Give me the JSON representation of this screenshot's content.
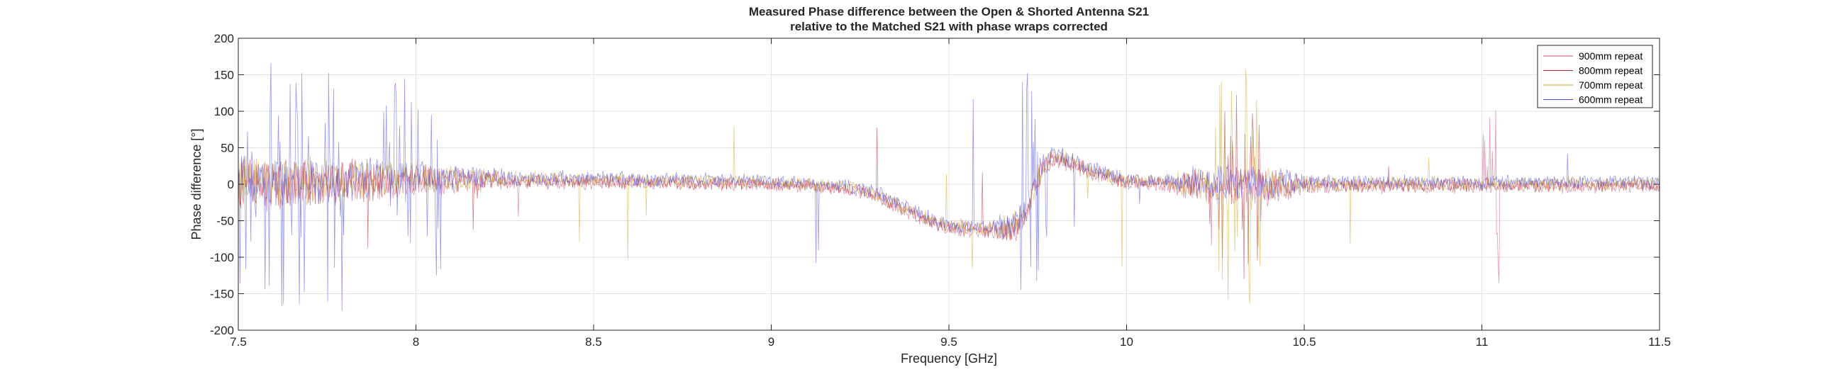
{
  "chart_data": {
    "type": "line",
    "title_lines": [
      "Measured Phase difference between the Open & Shorted Antenna S21",
      "relative to the Matched S21 with phase wraps corrected"
    ],
    "xlabel": "Frequency [GHz]",
    "ylabel": "Phase difference [°]",
    "xlim": [
      7.5,
      11.5
    ],
    "ylim": [
      -200,
      200
    ],
    "x_ticks": [
      7.5,
      8,
      8.5,
      9,
      9.5,
      10,
      10.5,
      11,
      11.5
    ],
    "x_tick_labels": [
      "7.5",
      "8",
      "8.5",
      "9",
      "9.5",
      "10",
      "10.5",
      "11",
      "11.5"
    ],
    "y_ticks": [
      200,
      150,
      100,
      50,
      0,
      -50,
      -100,
      -150,
      -200
    ],
    "y_tick_labels": [
      "200",
      "150",
      "100",
      "50",
      "0",
      "-50",
      "-100",
      "-150",
      "-200"
    ],
    "grid": true,
    "legend_position": "top-right",
    "series": [
      {
        "name": "900mm repeat",
        "color": "#c84a6a"
      },
      {
        "name": "800mm repeat",
        "color": "#b0202a"
      },
      {
        "name": "700mm repeat",
        "color": "#c8a830"
      },
      {
        "name": "600mm repeat",
        "color": "#4848e0"
      }
    ],
    "trend": {
      "x": [
        7.5,
        8.0,
        8.5,
        9.0,
        9.2,
        9.3,
        9.4,
        9.5,
        9.6,
        9.68,
        9.72,
        9.76,
        9.8,
        9.9,
        10.0,
        10.2,
        10.5,
        11.0,
        11.5
      ],
      "y": [
        0,
        8,
        5,
        2,
        -3,
        -15,
        -40,
        -58,
        -62,
        -60,
        -35,
        20,
        40,
        18,
        5,
        0,
        0,
        0,
        0
      ]
    },
    "noise_envelope": {
      "x": [
        7.5,
        7.8,
        8.0,
        8.1,
        8.3,
        9.0,
        9.6,
        9.7,
        9.8,
        10.1,
        10.2,
        10.4,
        10.5,
        11.5
      ],
      "y": [
        40,
        35,
        25,
        20,
        12,
        10,
        12,
        25,
        15,
        10,
        25,
        30,
        12,
        10
      ]
    },
    "spike_regions": [
      {
        "x_range": [
          7.5,
          7.8
        ],
        "amplitude": 175,
        "series": "600mm repeat"
      },
      {
        "x_range": [
          7.9,
          8.07
        ],
        "amplitude": 150,
        "series": "600mm repeat"
      },
      {
        "x_range": [
          9.7,
          9.78
        ],
        "amplitude": 170,
        "series": "600mm repeat"
      },
      {
        "x_range": [
          10.25,
          10.38
        ],
        "amplitude": 175,
        "series": "700mm repeat"
      },
      {
        "x_range": [
          10.25,
          10.38
        ],
        "amplitude": 130,
        "series": "800mm repeat"
      },
      {
        "x_range": [
          11.0,
          11.05
        ],
        "amplitude": 150,
        "series": "900mm repeat"
      }
    ]
  }
}
